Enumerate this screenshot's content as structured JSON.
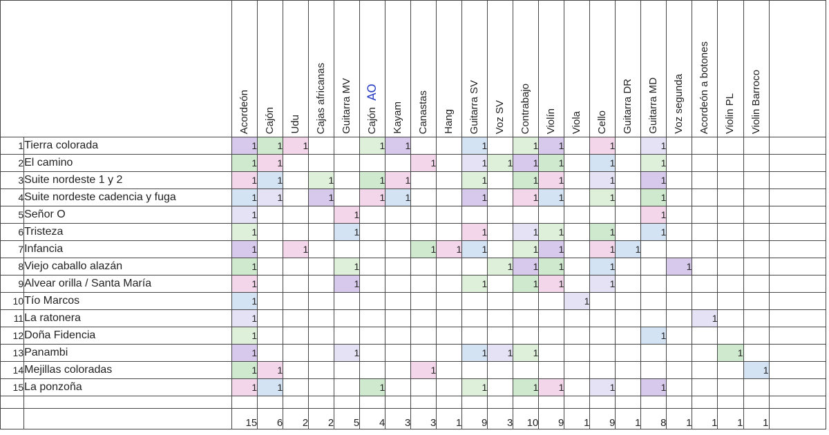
{
  "instruments": [
    {
      "name": "Acordeón",
      "note": ""
    },
    {
      "name": "Cajón",
      "note": ""
    },
    {
      "name": "Udu",
      "note": ""
    },
    {
      "name": "Cajas africanas",
      "note": ""
    },
    {
      "name": "Guitarra MV",
      "note": ""
    },
    {
      "name": "Cajón",
      "note": "AO"
    },
    {
      "name": "Kayam",
      "note": ""
    },
    {
      "name": "Canastas",
      "note": ""
    },
    {
      "name": "Hang",
      "note": ""
    },
    {
      "name": "Guitarra SV",
      "note": ""
    },
    {
      "name": "Voz SV",
      "note": ""
    },
    {
      "name": "Contrabajo",
      "note": ""
    },
    {
      "name": "Violín",
      "note": ""
    },
    {
      "name": "Viola",
      "note": ""
    },
    {
      "name": "Cello",
      "note": ""
    },
    {
      "name": "Guitarra DR",
      "note": ""
    },
    {
      "name": "Guitarra MD",
      "note": ""
    },
    {
      "name": "Voz segunda",
      "note": ""
    },
    {
      "name": "Acordeón a botones",
      "note": ""
    },
    {
      "name": "Violin PL",
      "note": ""
    },
    {
      "name": "Violin Barroco",
      "note": ""
    }
  ],
  "songs": [
    {
      "num": "1",
      "title": "Tierra colorada",
      "marks": [
        1,
        1,
        1,
        0,
        0,
        1,
        1,
        0,
        0,
        1,
        0,
        1,
        1,
        0,
        1,
        0,
        1,
        0,
        0,
        0,
        0
      ]
    },
    {
      "num": "2",
      "title": "El camino",
      "marks": [
        1,
        1,
        0,
        0,
        0,
        0,
        0,
        1,
        0,
        1,
        1,
        1,
        1,
        0,
        1,
        0,
        1,
        0,
        0,
        0,
        0
      ]
    },
    {
      "num": "3",
      "title": "Suite nordeste 1 y 2",
      "marks": [
        1,
        1,
        0,
        1,
        0,
        1,
        1,
        0,
        0,
        1,
        0,
        1,
        1,
        0,
        1,
        0,
        1,
        0,
        0,
        0,
        0
      ]
    },
    {
      "num": "4",
      "title": "Suite nordeste cadencia y fuga",
      "marks": [
        1,
        1,
        0,
        1,
        0,
        1,
        1,
        0,
        0,
        1,
        0,
        1,
        1,
        0,
        1,
        0,
        1,
        0,
        0,
        0,
        0
      ]
    },
    {
      "num": "5",
      "title": "Señor O",
      "marks": [
        1,
        0,
        0,
        0,
        1,
        0,
        0,
        0,
        0,
        0,
        0,
        0,
        0,
        0,
        0,
        0,
        1,
        0,
        0,
        0,
        0
      ]
    },
    {
      "num": "6",
      "title": "Tristeza",
      "marks": [
        1,
        0,
        0,
        0,
        1,
        0,
        0,
        0,
        0,
        1,
        0,
        1,
        1,
        0,
        1,
        0,
        1,
        0,
        0,
        0,
        0
      ]
    },
    {
      "num": "7",
      "title": "Infancia",
      "marks": [
        1,
        0,
        1,
        0,
        0,
        0,
        0,
        1,
        1,
        1,
        0,
        1,
        1,
        0,
        1,
        1,
        0,
        0,
        0,
        0,
        0
      ]
    },
    {
      "num": "8",
      "title": "Viejo caballo alazán",
      "marks": [
        1,
        0,
        0,
        0,
        1,
        0,
        0,
        0,
        0,
        0,
        1,
        1,
        1,
        0,
        1,
        0,
        0,
        1,
        0,
        0,
        0
      ]
    },
    {
      "num": "9",
      "title": "Alvear orilla / Santa María",
      "marks": [
        1,
        0,
        0,
        0,
        1,
        0,
        0,
        0,
        0,
        1,
        0,
        1,
        1,
        0,
        1,
        0,
        0,
        0,
        0,
        0,
        0
      ]
    },
    {
      "num": "10",
      "title": "Tío Marcos",
      "marks": [
        1,
        0,
        0,
        0,
        0,
        0,
        0,
        0,
        0,
        0,
        0,
        0,
        0,
        1,
        0,
        0,
        0,
        0,
        0,
        0,
        0
      ]
    },
    {
      "num": "11",
      "title": "La ratonera",
      "marks": [
        1,
        0,
        0,
        0,
        0,
        0,
        0,
        0,
        0,
        0,
        0,
        0,
        0,
        0,
        0,
        0,
        0,
        0,
        1,
        0,
        0
      ]
    },
    {
      "num": "12",
      "title": "Doña Fidencia",
      "marks": [
        1,
        0,
        0,
        0,
        0,
        0,
        0,
        0,
        0,
        0,
        0,
        0,
        0,
        0,
        0,
        0,
        1,
        0,
        0,
        0,
        0
      ]
    },
    {
      "num": "13",
      "title": "Panambi",
      "marks": [
        1,
        0,
        0,
        0,
        1,
        0,
        0,
        0,
        0,
        1,
        1,
        1,
        0,
        0,
        0,
        0,
        0,
        0,
        0,
        1,
        0
      ]
    },
    {
      "num": "14",
      "title": "Mejillas coloradas",
      "marks": [
        1,
        1,
        0,
        0,
        0,
        0,
        0,
        1,
        0,
        0,
        0,
        0,
        0,
        0,
        0,
        0,
        0,
        0,
        0,
        0,
        1
      ]
    },
    {
      "num": "15",
      "title": "La ponzoña",
      "marks": [
        1,
        1,
        0,
        0,
        0,
        1,
        0,
        0,
        0,
        1,
        0,
        1,
        1,
        0,
        1,
        0,
        1,
        0,
        0,
        0,
        0
      ]
    }
  ],
  "totals": [
    "15",
    "6",
    "2",
    "2",
    "5",
    "4",
    "3",
    "3",
    "1",
    "9",
    "3",
    "10",
    "9",
    "1",
    "9",
    "1",
    "8",
    "1",
    "1",
    "1",
    "1"
  ],
  "mark_label": "1",
  "highlight_colors": [
    "#d6c9ec",
    "#cfe9cf",
    "#f3d6ea",
    "#d3e3f4",
    "#e6e2f5",
    "#dff0da"
  ]
}
